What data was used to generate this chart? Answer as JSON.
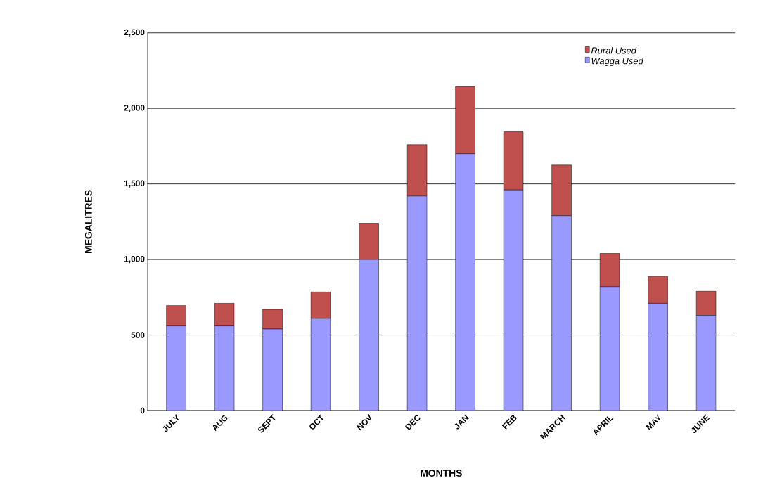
{
  "chart_data": {
    "type": "bar",
    "stacked": true,
    "xlabel": "MONTHS",
    "ylabel": "MEGALITRES",
    "categories": [
      "JULY",
      "AUG",
      "SEPT",
      "OCT",
      "NOV",
      "DEC",
      "JAN",
      "FEB",
      "MARCH",
      "APRIL",
      "MAY",
      "JUNE"
    ],
    "series": [
      {
        "name": "Wagga Used",
        "color": "#9999ff",
        "values": [
          560,
          560,
          540,
          610,
          1000,
          1420,
          1700,
          1460,
          1290,
          820,
          710,
          630
        ]
      },
      {
        "name": "Rural Used",
        "color": "#c0504d",
        "values": [
          135,
          150,
          130,
          175,
          240,
          340,
          445,
          385,
          335,
          220,
          180,
          160
        ]
      }
    ],
    "ylim": [
      0,
      2500
    ],
    "yticks": [
      0,
      500,
      {
        "value": 1000,
        "label": "1,000"
      },
      {
        "value": 1500,
        "label": "1,500"
      },
      {
        "value": 2000,
        "label": "2,000"
      },
      {
        "value": 2500,
        "label": "2,500"
      }
    ],
    "grid": "y",
    "legend": "top right"
  }
}
